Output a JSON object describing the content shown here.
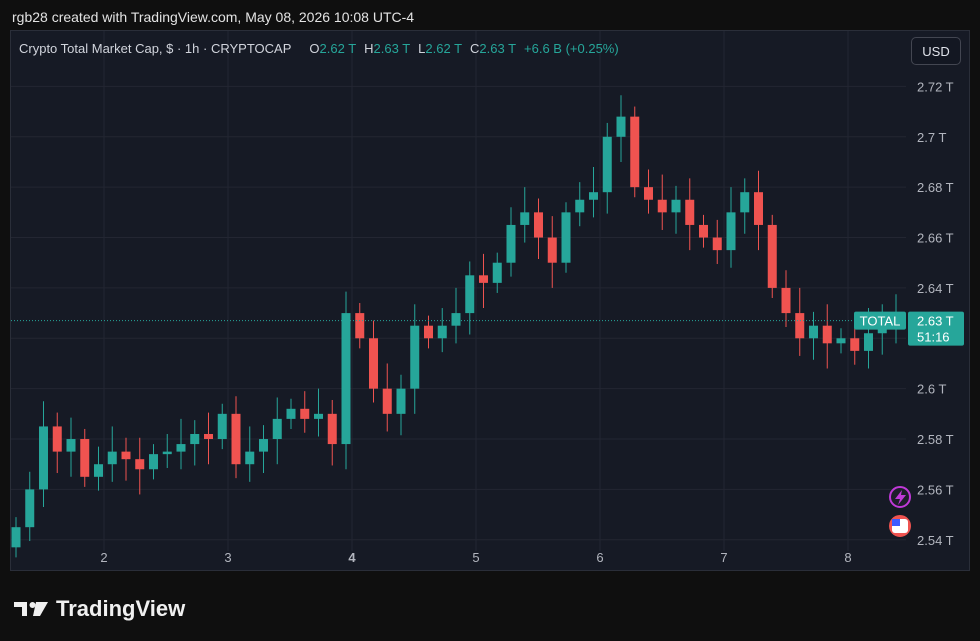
{
  "header": {
    "attribution": "rgb28 created with TradingView.com, May 08, 2026 10:08 UTC-4"
  },
  "legend": {
    "symbol": "Crypto Total Market Cap, $ · 1h · CRYPTOCAP",
    "o_label": "O",
    "o_value": "2.62 T",
    "h_label": "H",
    "h_value": "2.63 T",
    "l_label": "L",
    "l_value": "2.62 T",
    "c_label": "C",
    "c_value": "2.63 T",
    "change": "+6.6 B (+0.25%)"
  },
  "currency_button": "USD",
  "price_tag": {
    "series_label": "TOTAL",
    "price": "2.63 T",
    "countdown": "51:16"
  },
  "footer": {
    "brand": "TradingView"
  },
  "colors": {
    "up": "#26a69a",
    "down": "#ef5350",
    "background": "#161a25",
    "grid": "#232632",
    "text": "#d1d4dc"
  },
  "icons": [
    "lightning-event-icon",
    "us-flag-event-icon",
    "tradingview-logo-icon"
  ],
  "chart_data": {
    "type": "candlestick",
    "title": "Crypto Total Market Cap, $ · 1h · CRYPTOCAP",
    "x_tick_labels": [
      "2",
      "3",
      "4",
      "5",
      "6",
      "7",
      "8"
    ],
    "y_tick_labels": [
      "2.54 T",
      "2.56 T",
      "2.58 T",
      "2.6 T",
      "2.62 T",
      "2.64 T",
      "2.66 T",
      "2.68 T",
      "2.7 T",
      "2.72 T"
    ],
    "y_ticks": [
      2.54,
      2.56,
      2.58,
      2.6,
      2.62,
      2.64,
      2.66,
      2.68,
      2.7,
      2.72
    ],
    "ylim": [
      2.528,
      2.742
    ],
    "current_price": 2.627,
    "grid": true,
    "series": [
      {
        "name": "TOTAL",
        "close": [
          2.545,
          2.56,
          2.585,
          2.575,
          2.58,
          2.565,
          2.57,
          2.575,
          2.572,
          2.568,
          2.574,
          2.575,
          2.578,
          2.582,
          2.58,
          2.59,
          2.57,
          2.575,
          2.58,
          2.588,
          2.592,
          2.588,
          2.59,
          2.578,
          2.63,
          2.62,
          2.6,
          2.59,
          2.6,
          2.625,
          2.62,
          2.625,
          2.63,
          2.645,
          2.642,
          2.65,
          2.665,
          2.67,
          2.66,
          2.65,
          2.67,
          2.675,
          2.678,
          2.7,
          2.708,
          2.68,
          2.675,
          2.67,
          2.675,
          2.665,
          2.66,
          2.655,
          2.67,
          2.678,
          2.665,
          2.64,
          2.63,
          2.62,
          2.625,
          2.618,
          2.62,
          2.615,
          2.622,
          2.628,
          2.629
        ]
      }
    ]
  }
}
